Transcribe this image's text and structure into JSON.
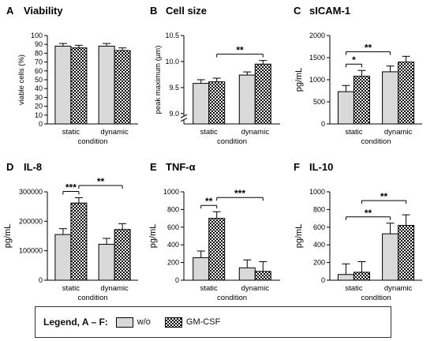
{
  "colors": {
    "wo": "#d9d9d9",
    "gmcsf_fg": "#000000",
    "gmcsf_bg": "#ffffff",
    "axis": "#000000"
  },
  "legend": {
    "title": "Legend, A – F:",
    "wo": "w/o",
    "gmcsf": "GM-CSF"
  },
  "chart_data": [
    {
      "panel": "A",
      "title": "Viability",
      "type": "bar",
      "categories": [
        "static",
        "dynamic"
      ],
      "xlabel": "condition",
      "ylabel": "viable cells (%)",
      "ylim": [
        0,
        100
      ],
      "yticks": [
        "0",
        "10",
        "20",
        "30",
        "40",
        "50",
        "60",
        "70",
        "80",
        "90",
        "100"
      ],
      "series": [
        {
          "name": "w/o",
          "values": [
            88,
            88
          ],
          "errors": [
            3,
            3
          ]
        },
        {
          "name": "GM-CSF",
          "values": [
            86,
            83
          ],
          "errors": [
            3,
            3
          ]
        }
      ],
      "significance": []
    },
    {
      "panel": "B",
      "title": "Cell size",
      "type": "bar",
      "categories": [
        "static",
        "dynamic"
      ],
      "xlabel": "condition",
      "ylabel": "peak maximum (µm)",
      "ylim": [
        8.8,
        10.5
      ],
      "yticks": [
        "9.0",
        "9.5",
        "10.0",
        "10.5"
      ],
      "axis_break": true,
      "series": [
        {
          "name": "w/o",
          "values": [
            9.58,
            9.74
          ],
          "errors": [
            0.07,
            0.06
          ]
        },
        {
          "name": "GM-CSF",
          "values": [
            9.61,
            9.95
          ],
          "errors": [
            0.07,
            0.07
          ]
        }
      ],
      "significance": [
        {
          "label": "**",
          "from": "static-GM-CSF",
          "to": "dynamic-GM-CSF"
        }
      ]
    },
    {
      "panel": "C",
      "title": "sICAM-1",
      "type": "bar",
      "categories": [
        "static",
        "dynamic"
      ],
      "xlabel": "condition",
      "ylabel": "pg/mL",
      "ylim": [
        0,
        2000
      ],
      "yticks": [
        "0",
        "500",
        "1000",
        "1500",
        "2000"
      ],
      "series": [
        {
          "name": "w/o",
          "values": [
            730,
            1180
          ],
          "errors": [
            140,
            130
          ]
        },
        {
          "name": "GM-CSF",
          "values": [
            1080,
            1400
          ],
          "errors": [
            130,
            130
          ]
        }
      ],
      "significance": [
        {
          "label": "*",
          "from": "static-w/o",
          "to": "static-GM-CSF"
        },
        {
          "label": "**",
          "from": "static-w/o",
          "to": "dynamic-w/o"
        }
      ]
    },
    {
      "panel": "D",
      "title": "IL-8",
      "type": "bar",
      "categories": [
        "static",
        "dynamic"
      ],
      "xlabel": "condition",
      "ylabel": "pg/mL",
      "ylim": [
        0,
        300000
      ],
      "yticks": [
        "0",
        "100000",
        "200000",
        "300000"
      ],
      "series": [
        {
          "name": "w/o",
          "values": [
            155000,
            122000
          ],
          "errors": [
            20000,
            20000
          ]
        },
        {
          "name": "GM-CSF",
          "values": [
            262000,
            172000
          ],
          "errors": [
            18000,
            20000
          ]
        }
      ],
      "significance": [
        {
          "label": "***",
          "from": "static-w/o",
          "to": "static-GM-CSF"
        },
        {
          "label": "**",
          "from": "static-GM-CSF",
          "to": "dynamic-GM-CSF"
        }
      ]
    },
    {
      "panel": "E",
      "title": "TNF-α",
      "type": "bar",
      "categories": [
        "static",
        "dynamic"
      ],
      "xlabel": "condition",
      "ylabel": "pg/mL",
      "ylim": [
        0,
        1000
      ],
      "yticks": [
        "0",
        "200",
        "400",
        "600",
        "800",
        "1000"
      ],
      "series": [
        {
          "name": "w/o",
          "values": [
            255,
            140
          ],
          "errors": [
            75,
            90
          ]
        },
        {
          "name": "GM-CSF",
          "values": [
            700,
            100
          ],
          "errors": [
            75,
            110
          ]
        }
      ],
      "significance": [
        {
          "label": "**",
          "from": "static-w/o",
          "to": "static-GM-CSF"
        },
        {
          "label": "***",
          "from": "static-GM-CSF",
          "to": "dynamic-GM-CSF"
        }
      ]
    },
    {
      "panel": "F",
      "title": "IL-10",
      "type": "bar",
      "categories": [
        "static",
        "dynamic"
      ],
      "xlabel": "condition",
      "ylabel": "pg/mL",
      "ylim": [
        0,
        1000
      ],
      "yticks": [
        "0",
        "200",
        "400",
        "600",
        "800",
        "1000"
      ],
      "series": [
        {
          "name": "w/o",
          "values": [
            65,
            525
          ],
          "errors": [
            120,
            120
          ]
        },
        {
          "name": "GM-CSF",
          "values": [
            90,
            620
          ],
          "errors": [
            120,
            120
          ]
        }
      ],
      "significance": [
        {
          "label": "**",
          "from": "static-w/o",
          "to": "dynamic-w/o"
        },
        {
          "label": "**",
          "from": "static-GM-CSF",
          "to": "dynamic-GM-CSF"
        }
      ]
    }
  ]
}
